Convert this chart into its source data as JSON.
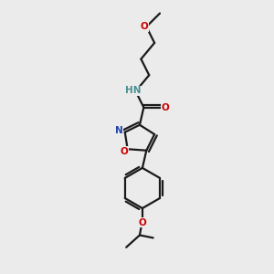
{
  "bg_color": "#ebebeb",
  "bond_color": "#1a1a1a",
  "bond_width": 1.6,
  "atom_colors": {
    "N": "#4a9090",
    "O": "#cc0000",
    "C": "#1a1a1a"
  },
  "font_size": 7.5,
  "N_color": "#4a9090",
  "O_color": "#cc0000",
  "ring_N_color": "#2244aa"
}
